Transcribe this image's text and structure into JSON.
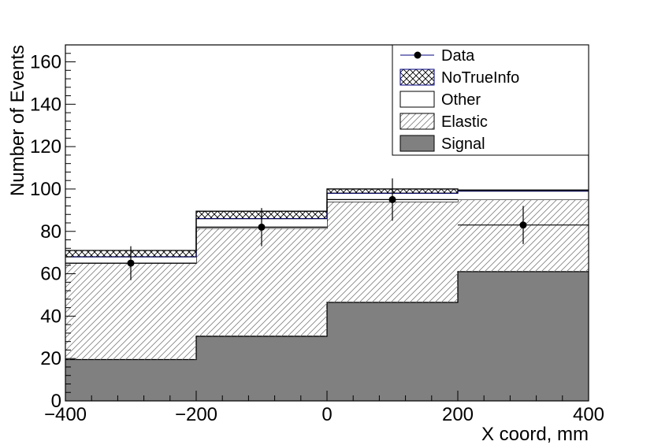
{
  "chart_data": {
    "type": "bar",
    "stacked": true,
    "bin_edges": [
      -400,
      -200,
      0,
      200,
      400
    ],
    "xlim": [
      -400,
      400
    ],
    "ylim": [
      0,
      168
    ],
    "xlabel": "X coord, mm",
    "ylabel": "Number of Events",
    "x_ticks": [
      -400,
      -200,
      0,
      200,
      400
    ],
    "x_tick_labels": [
      "−400",
      "−200",
      "0",
      "200",
      "400"
    ],
    "y_ticks": [
      0,
      20,
      40,
      60,
      80,
      100,
      120,
      140,
      160
    ],
    "y_tick_labels": [
      "0",
      "20",
      "40",
      "60",
      "80",
      "100",
      "120",
      "140",
      "160"
    ],
    "legend_placement": "top-right",
    "series": [
      {
        "name": "Signal",
        "style": "solid",
        "color": "#808080",
        "values": [
          19.5,
          30.5,
          46.5,
          61
        ]
      },
      {
        "name": "Elastic",
        "style": "hatched",
        "color": "#808080",
        "values": [
          45.5,
          51,
          47.5,
          34
        ]
      },
      {
        "name": "Other",
        "style": "open",
        "color": "#ffffff",
        "values": [
          3,
          4.5,
          4,
          4
        ]
      },
      {
        "name": "NoTrueInfo",
        "style": "crosshatch",
        "color": "#000080",
        "values": [
          3,
          3.5,
          2,
          0.5
        ]
      }
    ],
    "data_points": {
      "name": "Data",
      "x": [
        -300,
        -100,
        100,
        300
      ],
      "y": [
        65,
        82,
        95,
        83
      ],
      "yerr": [
        8,
        9,
        10,
        9
      ],
      "xerr": [
        100,
        100,
        100,
        100
      ]
    },
    "legend": [
      {
        "label": "Data",
        "symbol": "marker"
      },
      {
        "label": "NoTrueInfo",
        "symbol": "crosshatch"
      },
      {
        "label": "Other",
        "symbol": "open"
      },
      {
        "label": "Elastic",
        "symbol": "hatched"
      },
      {
        "label": "Signal",
        "symbol": "solid"
      }
    ]
  }
}
